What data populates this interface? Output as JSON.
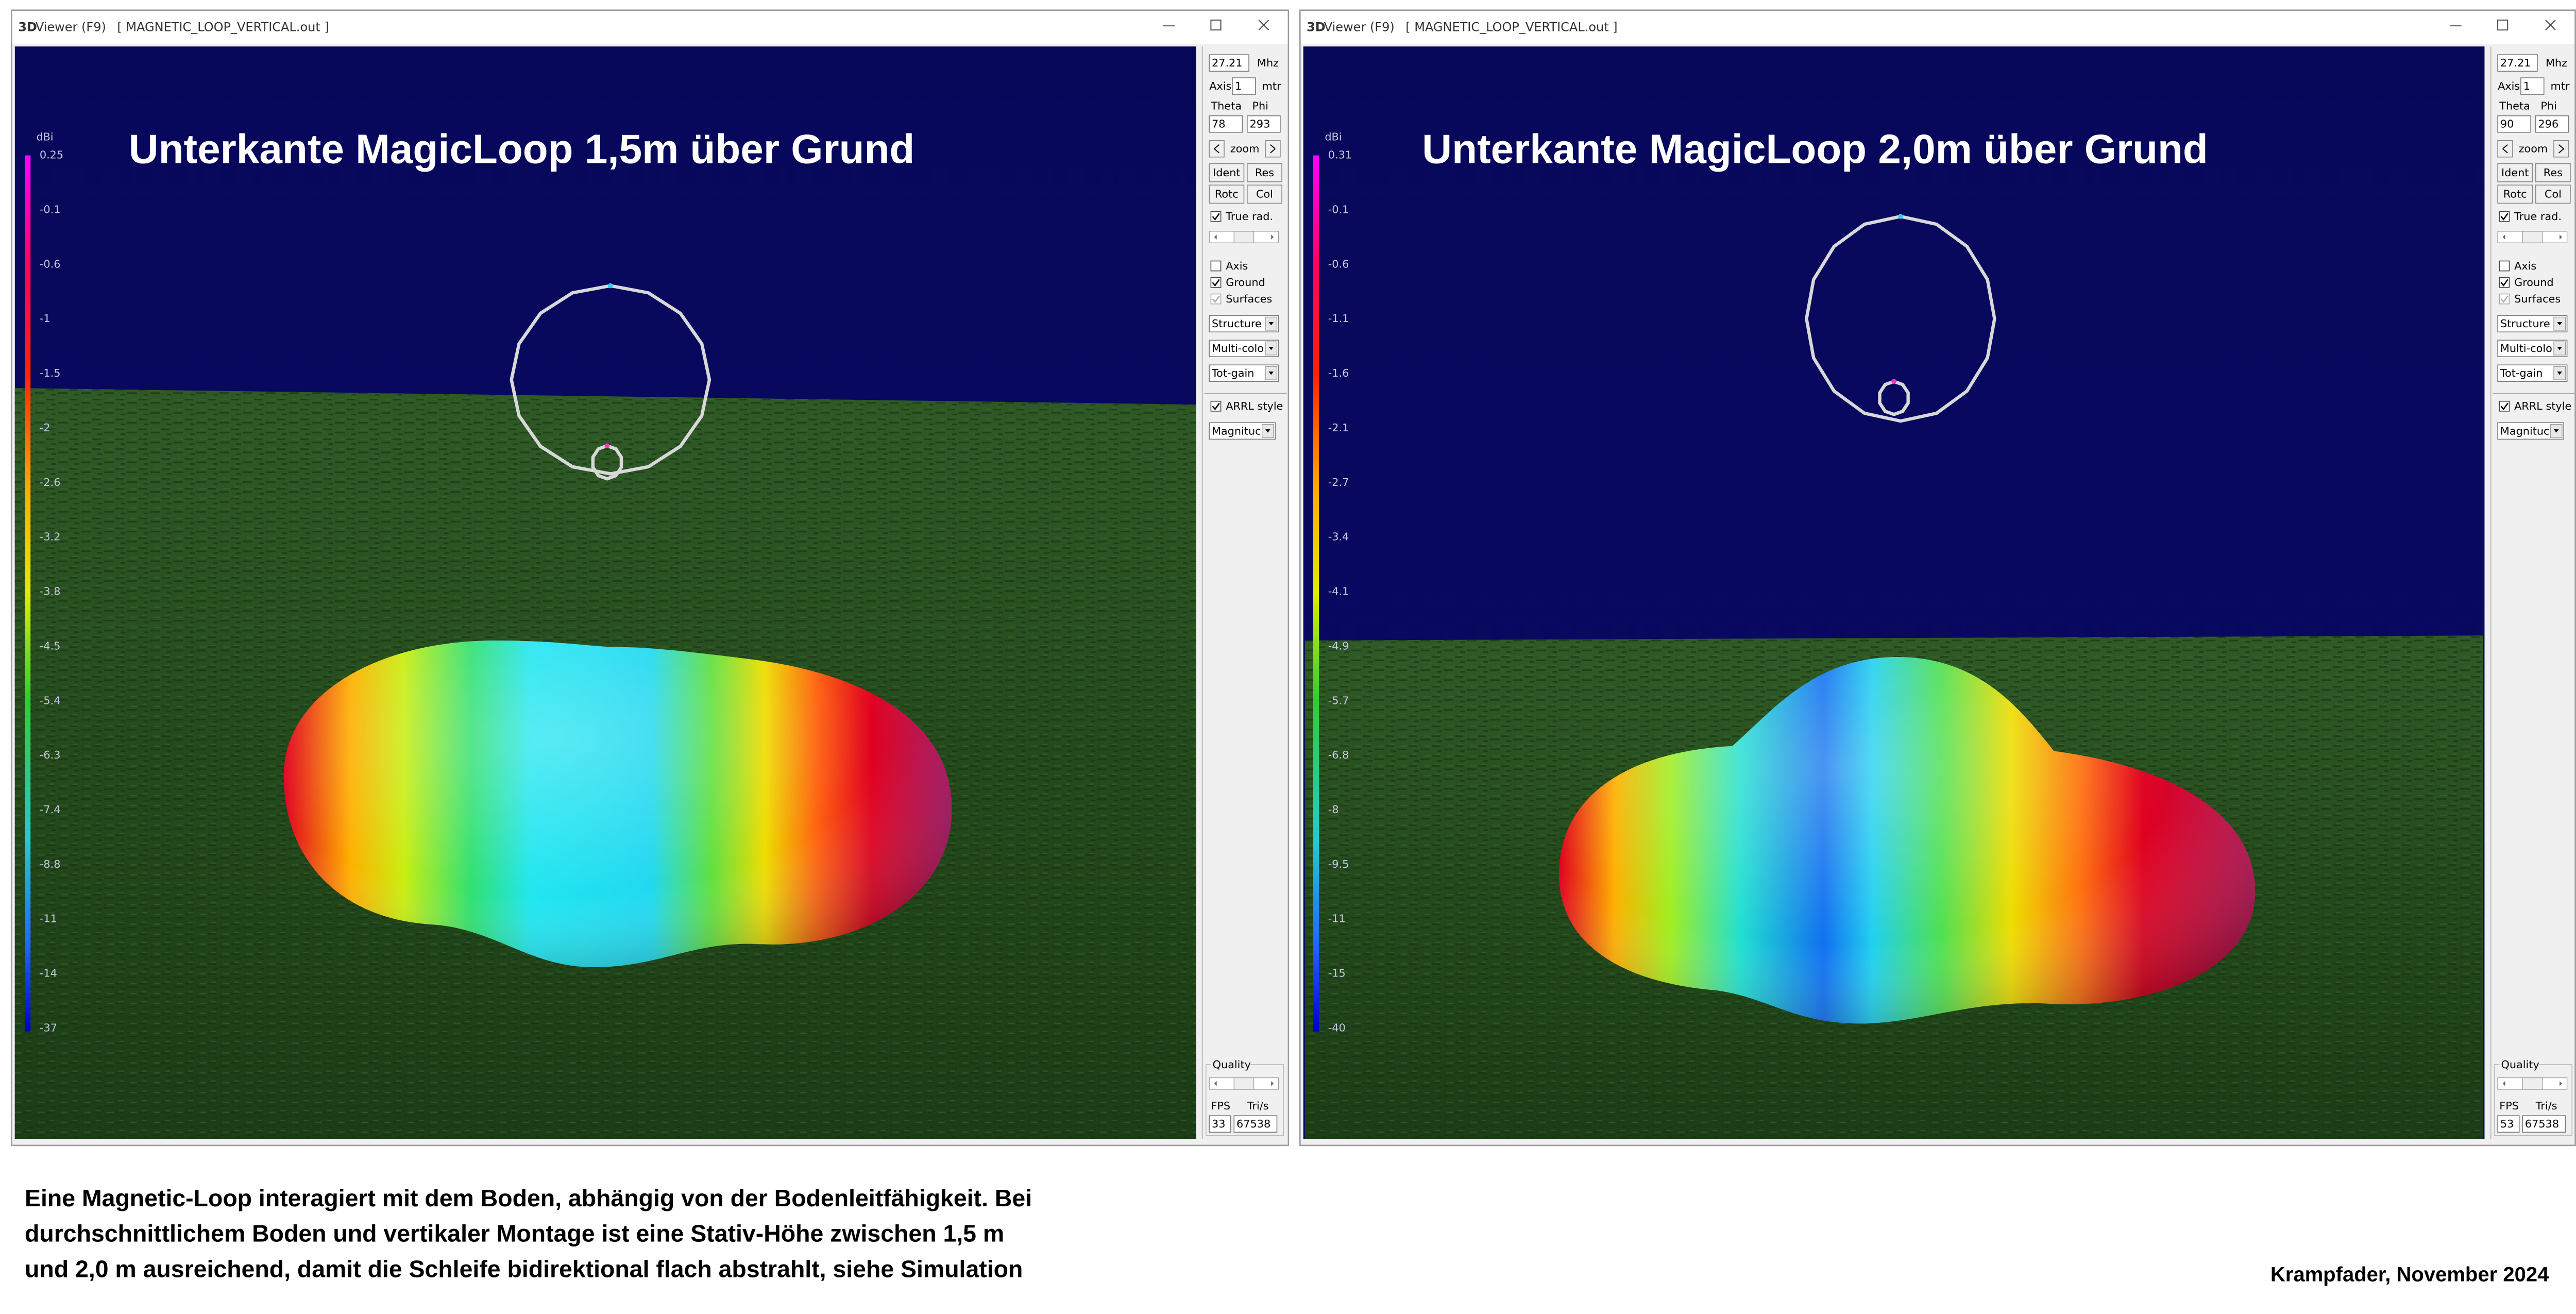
{
  "windows": [
    {
      "app_bold": "3D",
      "app": "Viewer (F9)",
      "file": "[  MAGNETIC_LOOP_VERTICAL.out ]",
      "overlay": "Unterkante MagicLoop 1,5m über Grund",
      "scale_unit": "dBi",
      "scale_labels": [
        "0.25",
        "-0.1",
        "-0.6",
        "-1",
        "-1.5",
        "-2",
        "-2.6",
        "-3.2",
        "-3.8",
        "-4.5",
        "-5.4",
        "-6.3",
        "-7.4",
        "-8.8",
        "-11",
        "-14",
        "-37"
      ],
      "panel": {
        "freq": "27.21",
        "freq_unit": "Mhz",
        "axis_label": "Axis",
        "axis_value": "1",
        "axis_unit": "mtr",
        "theta_label": "Theta",
        "phi_label": "Phi",
        "theta": "78",
        "phi": "293",
        "zoom": "zoom",
        "buttons": [
          "Ident",
          "Res",
          "Rotc",
          "Col"
        ],
        "true_rad": {
          "label": "True rad.",
          "checked": true
        },
        "checkboxes": [
          {
            "label": "Axis",
            "checked": false
          },
          {
            "label": "Ground",
            "checked": true
          },
          {
            "label": "Surfaces",
            "checked": true,
            "disabled": true
          }
        ],
        "dropdowns": [
          "Structure",
          "Multi-colo",
          "Tot-gain"
        ],
        "arrl": {
          "label": "ARRL style",
          "checked": true
        },
        "display": "Magnituc",
        "quality": "Quality",
        "fps_label": "FPS",
        "tris_label": "Tri/s",
        "fps": "33",
        "tris": "67538"
      }
    },
    {
      "app_bold": "3D",
      "app": "Viewer (F9)",
      "file": "[  MAGNETIC_LOOP_VERTICAL.out ]",
      "overlay": "Unterkante MagicLoop 2,0m über Grund",
      "scale_unit": "dBi",
      "scale_labels": [
        "0.31",
        "-0.1",
        "-0.6",
        "-1.1",
        "-1.6",
        "-2.1",
        "-2.7",
        "-3.4",
        "-4.1",
        "-4.9",
        "-5.7",
        "-6.8",
        "-8",
        "-9.5",
        "-11",
        "-15",
        "-40"
      ],
      "panel": {
        "freq": "27.21",
        "freq_unit": "Mhz",
        "axis_label": "Axis",
        "axis_value": "1",
        "axis_unit": "mtr",
        "theta_label": "Theta",
        "phi_label": "Phi",
        "theta": "90",
        "phi": "296",
        "zoom": "zoom",
        "buttons": [
          "Ident",
          "Res",
          "Rotc",
          "Col"
        ],
        "true_rad": {
          "label": "True rad.",
          "checked": true
        },
        "checkboxes": [
          {
            "label": "Axis",
            "checked": false
          },
          {
            "label": "Ground",
            "checked": true
          },
          {
            "label": "Surfaces",
            "checked": true,
            "disabled": true
          }
        ],
        "dropdowns": [
          "Structure",
          "Multi-colo",
          "Tot-gain"
        ],
        "arrl": {
          "label": "ARRL style",
          "checked": true
        },
        "display": "Magnituc",
        "quality": "Quality",
        "fps_label": "FPS",
        "tris_label": "Tri/s",
        "fps": "53",
        "tris": "67538"
      }
    }
  ],
  "caption": [
    "Eine Magnetic-Loop interagiert mit dem Boden, abhängig von der Bodenleitfähigkeit. Bei",
    "durchschnittlichem Boden und vertikaler Montage ist eine Stativ-Höhe zwischen 1,5 m",
    "und 2,0 m ausreichend, damit die Schleife bidirektional flach abstrahlt, siehe Simulation"
  ],
  "credit": "Krampfader, November 2024"
}
